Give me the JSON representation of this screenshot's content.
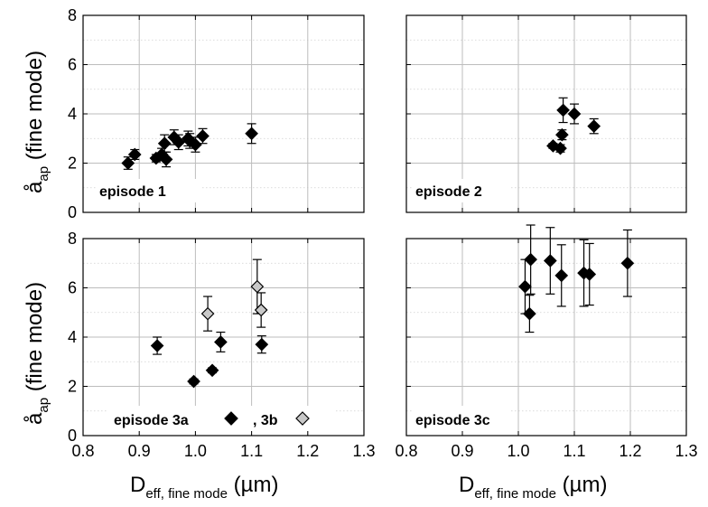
{
  "chart_data": [
    {
      "type": "scatter",
      "panel": "top-left",
      "annotation": "episode 1",
      "ylabel_main": "å",
      "ylabel_sub": "ap",
      "ylabel_rest": " (fine mode)",
      "xlim": [
        0.8,
        1.3
      ],
      "ylim": [
        0,
        8
      ],
      "x_ticks": [],
      "y_ticks": [
        "0",
        "2",
        "4",
        "6",
        "8"
      ],
      "series": [
        {
          "color": "#000000",
          "points": [
            {
              "x": 0.88,
              "y": 2.0,
              "err": 0.25
            },
            {
              "x": 0.892,
              "y": 2.35,
              "err": 0.2
            },
            {
              "x": 0.93,
              "y": 2.2,
              "err": 0.15
            },
            {
              "x": 0.94,
              "y": 2.35,
              "err": 0.25
            },
            {
              "x": 0.945,
              "y": 2.8,
              "err": 0.35
            },
            {
              "x": 0.948,
              "y": 2.15,
              "err": 0.3
            },
            {
              "x": 0.962,
              "y": 3.05,
              "err": 0.3
            },
            {
              "x": 0.97,
              "y": 2.85,
              "err": 0.3
            },
            {
              "x": 0.987,
              "y": 3.0,
              "err": 0.3
            },
            {
              "x": 0.99,
              "y": 2.9,
              "err": 0.3
            },
            {
              "x": 1.0,
              "y": 2.75,
              "err": 0.3
            },
            {
              "x": 1.013,
              "y": 3.1,
              "err": 0.3
            },
            {
              "x": 1.1,
              "y": 3.2,
              "err": 0.4
            }
          ]
        }
      ]
    },
    {
      "type": "scatter",
      "panel": "top-right",
      "annotation": "episode 2",
      "xlim": [
        0.8,
        1.3
      ],
      "ylim": [
        0,
        8
      ],
      "x_ticks": [],
      "y_ticks": [],
      "series": [
        {
          "color": "#000000",
          "points": [
            {
              "x": 1.062,
              "y": 2.7,
              "err": 0.1
            },
            {
              "x": 1.075,
              "y": 2.6,
              "err": 0.15
            },
            {
              "x": 1.078,
              "y": 3.15,
              "err": 0.2
            },
            {
              "x": 1.08,
              "y": 4.15,
              "err": 0.5
            },
            {
              "x": 1.1,
              "y": 4.0,
              "err": 0.4
            },
            {
              "x": 1.135,
              "y": 3.5,
              "err": 0.3
            }
          ]
        }
      ]
    },
    {
      "type": "scatter",
      "panel": "bottom-left",
      "annotation_a": "episode 3a",
      "annotation_b": ", 3b",
      "ylabel_main": "å",
      "ylabel_sub": "ap",
      "ylabel_rest": " (fine mode)",
      "xlabel_main": "D",
      "xlabel_sub": "eff, fine mode",
      "xlabel_rest": " (µm)",
      "xlim": [
        0.8,
        1.3
      ],
      "ylim": [
        0,
        8
      ],
      "x_ticks": [
        "0.8",
        "0.9",
        "1.0",
        "1.1",
        "1.2",
        "1.3"
      ],
      "y_ticks": [
        "0",
        "2",
        "4",
        "6",
        "8"
      ],
      "series": [
        {
          "color": "#000000",
          "points": [
            {
              "x": 0.932,
              "y": 3.65,
              "err": 0.35
            },
            {
              "x": 0.997,
              "y": 2.2,
              "err": 0.1
            },
            {
              "x": 1.03,
              "y": 2.65,
              "err": 0.1
            },
            {
              "x": 1.045,
              "y": 3.8,
              "err": 0.4
            },
            {
              "x": 1.118,
              "y": 3.7,
              "err": 0.35
            }
          ]
        },
        {
          "color": "#c8c8c8",
          "points": [
            {
              "x": 1.022,
              "y": 4.95,
              "err": 0.7
            },
            {
              "x": 1.11,
              "y": 6.05,
              "err": 1.1
            },
            {
              "x": 1.117,
              "y": 5.1,
              "err": 0.7
            }
          ]
        }
      ]
    },
    {
      "type": "scatter",
      "panel": "bottom-right",
      "annotation": "episode 3c",
      "xlabel_main": "D",
      "xlabel_sub": "eff, fine mode",
      "xlabel_rest": " (µm)",
      "xlim": [
        0.8,
        1.3
      ],
      "ylim": [
        0,
        8
      ],
      "x_ticks": [
        "0.8",
        "0.9",
        "1.0",
        "1.1",
        "1.2",
        "1.3"
      ],
      "y_ticks": [],
      "series": [
        {
          "color": "#000000",
          "points": [
            {
              "x": 1.012,
              "y": 6.05,
              "err": 1.1
            },
            {
              "x": 1.02,
              "y": 4.95,
              "err": 0.75
            },
            {
              "x": 1.022,
              "y": 7.15,
              "err": 1.4
            },
            {
              "x": 1.057,
              "y": 7.1,
              "err": 1.35
            },
            {
              "x": 1.077,
              "y": 6.5,
              "err": 1.25
            },
            {
              "x": 1.117,
              "y": 6.6,
              "err": 1.35
            },
            {
              "x": 1.127,
              "y": 6.55,
              "err": 1.25
            },
            {
              "x": 1.195,
              "y": 7.0,
              "err": 1.35
            }
          ]
        }
      ]
    }
  ]
}
